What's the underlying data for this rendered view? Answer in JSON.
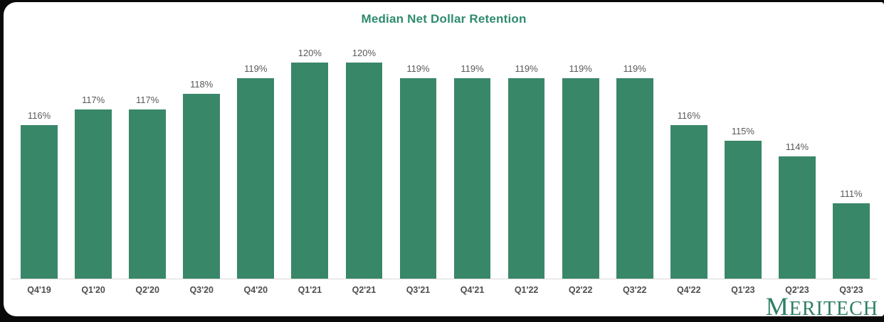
{
  "page": {
    "background_color": "#0a0a0a",
    "card_background_color": "#ffffff"
  },
  "chart_data": {
    "type": "bar",
    "title": "Median Net Dollar Retention",
    "categories": [
      "Q4'19",
      "Q1'20",
      "Q2'20",
      "Q3'20",
      "Q4'20",
      "Q1'21",
      "Q2'21",
      "Q3'21",
      "Q4'21",
      "Q1'22",
      "Q2'22",
      "Q3'22",
      "Q4'22",
      "Q1'23",
      "Q2'23",
      "Q3'23"
    ],
    "values": [
      116,
      117,
      117,
      118,
      119,
      120,
      120,
      119,
      119,
      119,
      119,
      119,
      116,
      115,
      114,
      111
    ],
    "value_suffix": "%",
    "xlabel": "",
    "ylabel": "",
    "ylim": [
      106.2,
      121.4
    ],
    "grid": false,
    "legend": false,
    "data_labels": true,
    "bar_color": "#398769",
    "title_color": "#2E8B6E",
    "value_label_color": "#595959",
    "category_label_color": "#4d4d4d",
    "axis_line_color": "#d9d9d9"
  },
  "branding": {
    "logo_initial": "M",
    "logo_rest": "ERITECH",
    "logo_color": "#2E7F63"
  }
}
